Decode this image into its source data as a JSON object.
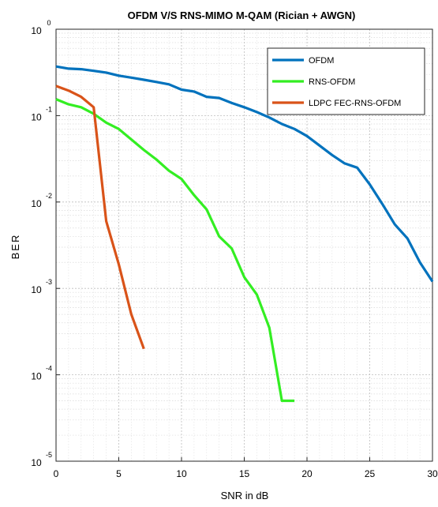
{
  "chart_data": {
    "type": "line",
    "title": "OFDM V/S RNS-MIMO M-QAM (Rician + AWGN)",
    "xlabel": "SNR in dB",
    "ylabel": "BER",
    "xlim": [
      0,
      30
    ],
    "ylim": [
      1e-05,
      1
    ],
    "yscale": "log",
    "grid": true,
    "legend_position": "top-right",
    "xticks": [
      0,
      5,
      10,
      15,
      20,
      25,
      30
    ],
    "xtick_labels": [
      "0",
      "5",
      "10",
      "15",
      "20",
      "25",
      "30"
    ],
    "yticks": [
      {
        "value": 1,
        "base": "10",
        "exp": "0"
      },
      {
        "value": 0.1,
        "base": "10",
        "exp": "-1"
      },
      {
        "value": 0.01,
        "base": "10",
        "exp": "-2"
      },
      {
        "value": 0.001,
        "base": "10",
        "exp": "-3"
      },
      {
        "value": 0.0001,
        "base": "10",
        "exp": "-4"
      },
      {
        "value": 1e-05,
        "base": "10",
        "exp": "-5"
      }
    ],
    "series": [
      {
        "name": "OFDM",
        "color": "#0072BD",
        "x": [
          0,
          1,
          2,
          3,
          4,
          5,
          6,
          7,
          8,
          9,
          10,
          11,
          12,
          13,
          14,
          15,
          16,
          17,
          18,
          19,
          20,
          21,
          22,
          23,
          24,
          25,
          26,
          27,
          28,
          29,
          30
        ],
        "y": [
          0.37,
          0.35,
          0.345,
          0.33,
          0.315,
          0.29,
          0.275,
          0.26,
          0.245,
          0.23,
          0.2,
          0.19,
          0.165,
          0.16,
          0.14,
          0.125,
          0.11,
          0.095,
          0.08,
          0.07,
          0.058,
          0.045,
          0.035,
          0.028,
          0.025,
          0.016,
          0.0095,
          0.0055,
          0.0038,
          0.002,
          0.0012
        ]
      },
      {
        "name": "RNS-OFDM",
        "color": "#33EE22",
        "x": [
          0,
          1,
          2,
          3,
          4,
          5,
          6,
          7,
          8,
          9,
          10,
          11,
          12,
          13,
          14,
          15,
          16,
          17,
          18,
          19
        ],
        "y": [
          0.155,
          0.135,
          0.125,
          0.105,
          0.083,
          0.07,
          0.053,
          0.04,
          0.031,
          0.023,
          0.0185,
          0.012,
          0.0082,
          0.004,
          0.0029,
          0.00135,
          0.00085,
          0.00035,
          5e-05,
          5e-05
        ]
      },
      {
        "name": "LDPC FEC-RNS-OFDM",
        "color": "#D95319",
        "x": [
          0,
          1,
          2,
          3,
          4,
          5,
          6,
          7
        ],
        "y": [
          0.22,
          0.195,
          0.165,
          0.125,
          0.006,
          0.0019,
          0.0005,
          0.0002
        ]
      }
    ]
  }
}
